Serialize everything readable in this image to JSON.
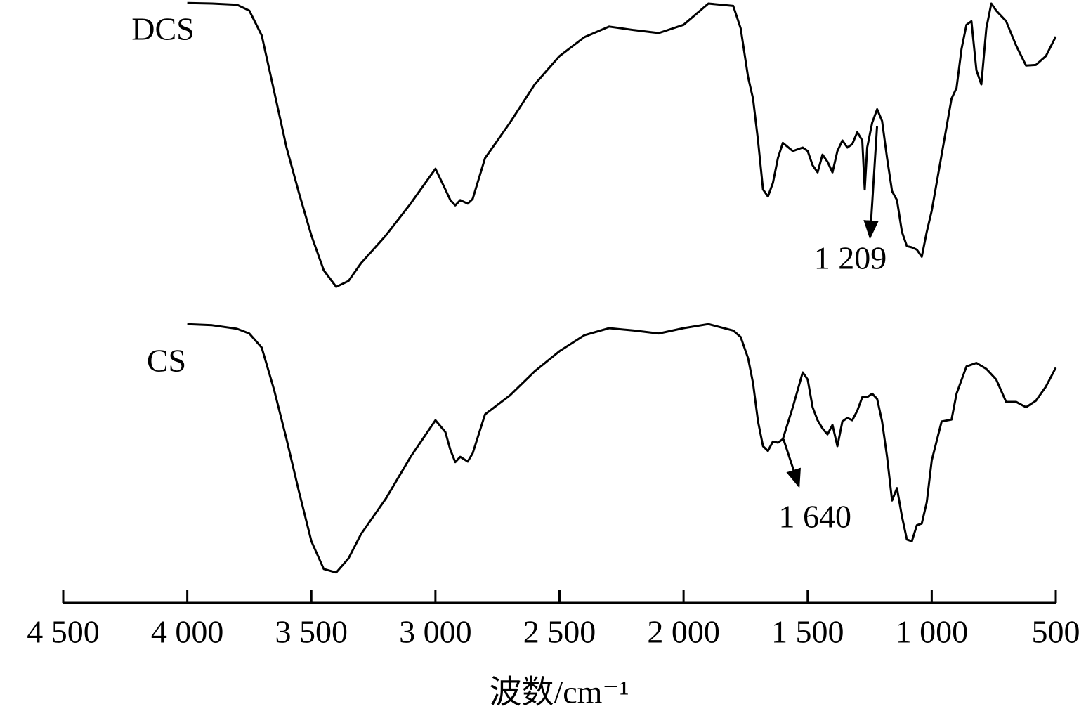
{
  "chart_data": {
    "type": "line",
    "x_label": "波数/cm⁻¹",
    "xlim": [
      4500,
      500
    ],
    "xticks": [
      {
        "value": 4500,
        "label": "4 500"
      },
      {
        "value": 4000,
        "label": "4 000"
      },
      {
        "value": 3500,
        "label": "3 500"
      },
      {
        "value": 3000,
        "label": "3 000"
      },
      {
        "value": 2500,
        "label": "2 500"
      },
      {
        "value": 2000,
        "label": "2 000"
      },
      {
        "value": 1500,
        "label": "1 500"
      },
      {
        "value": 1000,
        "label": "1 000"
      },
      500
    ],
    "ylim": [
      0,
      100
    ],
    "series": [
      {
        "name": "DCS",
        "color": "#000000",
        "x": [
          4000,
          3900,
          3800,
          3750,
          3700,
          3650,
          3600,
          3550,
          3500,
          3450,
          3400,
          3350,
          3300,
          3200,
          3100,
          3000,
          2960,
          2940,
          2920,
          2900,
          2870,
          2850,
          2800,
          2700,
          2600,
          2500,
          2400,
          2300,
          2200,
          2100,
          2000,
          1900,
          1800,
          1770,
          1740,
          1720,
          1700,
          1680,
          1660,
          1640,
          1620,
          1600,
          1560,
          1520,
          1500,
          1480,
          1460,
          1440,
          1420,
          1400,
          1380,
          1360,
          1340,
          1320,
          1300,
          1280,
          1270,
          1260,
          1240,
          1220,
          1200,
          1180,
          1160,
          1140,
          1120,
          1100,
          1080,
          1060,
          1040,
          1020,
          1000,
          960,
          920,
          900,
          880,
          860,
          840,
          820,
          800,
          780,
          760,
          740,
          700,
          660,
          620,
          580,
          540,
          500
        ],
        "values": [
          99.5,
          99.4,
          99.2,
          98.2,
          94.0,
          84.5,
          75.0,
          67.3,
          60.1,
          54.2,
          51.4,
          52.4,
          55.4,
          60.1,
          65.5,
          71.4,
          67.9,
          66.1,
          65.2,
          66.1,
          65.5,
          66.3,
          73.2,
          79.2,
          85.7,
          90.5,
          93.7,
          95.5,
          94.9,
          94.4,
          95.8,
          99.4,
          99.0,
          95.2,
          86.9,
          83.3,
          76.2,
          67.9,
          66.7,
          69.0,
          73.2,
          75.8,
          74.4,
          75.0,
          74.4,
          72.0,
          70.8,
          73.8,
          72.6,
          70.8,
          74.4,
          76.2,
          75.0,
          75.6,
          77.6,
          76.2,
          67.9,
          75.0,
          79.2,
          81.5,
          79.5,
          73.2,
          67.6,
          66.1,
          60.7,
          58.3,
          58.1,
          57.7,
          56.5,
          60.7,
          64.3,
          73.8,
          83.3,
          85.1,
          91.7,
          95.8,
          96.4,
          88.1,
          85.7,
          95.2,
          99.4,
          98.2,
          96.4,
          92.3,
          88.9,
          89.0,
          90.5,
          93.8
        ]
      },
      {
        "name": "CS",
        "color": "#000000",
        "x": [
          4000,
          3900,
          3800,
          3750,
          3700,
          3650,
          3600,
          3550,
          3500,
          3450,
          3400,
          3350,
          3300,
          3200,
          3100,
          3000,
          2960,
          2940,
          2920,
          2900,
          2870,
          2850,
          2800,
          2700,
          2600,
          2500,
          2400,
          2300,
          2200,
          2100,
          2000,
          1900,
          1800,
          1770,
          1740,
          1720,
          1700,
          1680,
          1660,
          1640,
          1620,
          1600,
          1560,
          1520,
          1500,
          1480,
          1460,
          1440,
          1420,
          1400,
          1380,
          1360,
          1340,
          1320,
          1300,
          1280,
          1260,
          1240,
          1220,
          1200,
          1180,
          1160,
          1140,
          1120,
          1100,
          1080,
          1060,
          1040,
          1020,
          1000,
          960,
          920,
          900,
          860,
          820,
          780,
          740,
          700,
          660,
          620,
          580,
          540,
          500
        ],
        "values": [
          45.1,
          44.9,
          44.3,
          43.5,
          41.1,
          33.9,
          25.6,
          16.7,
          8.3,
          3.6,
          3.0,
          5.4,
          9.5,
          15.5,
          22.6,
          28.8,
          26.8,
          23.8,
          21.7,
          22.6,
          21.8,
          23.2,
          29.8,
          33.0,
          37.1,
          40.5,
          43.2,
          44.4,
          44.0,
          43.5,
          44.4,
          45.1,
          44.0,
          42.9,
          39.3,
          35.1,
          28.6,
          24.4,
          23.6,
          25.2,
          25.0,
          25.6,
          31.0,
          36.9,
          35.7,
          31.0,
          28.8,
          27.4,
          26.4,
          28.0,
          24.4,
          28.6,
          29.2,
          28.8,
          30.4,
          32.7,
          32.7,
          33.3,
          32.4,
          28.6,
          22.6,
          15.2,
          17.3,
          12.5,
          8.6,
          8.3,
          11.0,
          11.3,
          14.9,
          22.0,
          28.6,
          28.9,
          33.3,
          37.9,
          38.5,
          37.5,
          35.7,
          31.9,
          31.9,
          31.0,
          32.1,
          34.5,
          37.7
        ]
      }
    ],
    "annotations": [
      {
        "label": "1 209",
        "x": 1209
      },
      {
        "label": "1 640",
        "x": 1640
      }
    ]
  }
}
